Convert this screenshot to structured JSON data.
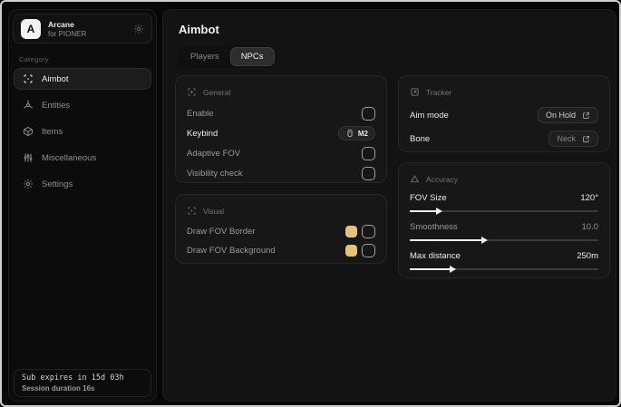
{
  "sidebar": {
    "brand": {
      "logo_letter": "A",
      "name": "Arcane",
      "subtitle": "for PIONER"
    },
    "category_label": "Category",
    "items": [
      {
        "label": "Aimbot"
      },
      {
        "label": "Entities"
      },
      {
        "label": "Items"
      },
      {
        "label": "Miscellaneous"
      },
      {
        "label": "Settings"
      }
    ],
    "footer": {
      "line1": "Sub expires in 15d 03h",
      "line2": "Session duration 16s"
    }
  },
  "main": {
    "title": "Aimbot",
    "tabs": [
      {
        "label": "Players"
      },
      {
        "label": "NPCs"
      }
    ],
    "general": {
      "title": "General",
      "rows": [
        {
          "label": "Enable"
        },
        {
          "label": "Keybind",
          "value": "M2"
        },
        {
          "label": "Adaptive FOV"
        },
        {
          "label": "Visibility check"
        }
      ]
    },
    "visual": {
      "title": "Visual",
      "rows": [
        {
          "label": "Draw FOV Border"
        },
        {
          "label": "Draw FOV Background"
        }
      ]
    },
    "tracker": {
      "title": "Tracker",
      "rows": [
        {
          "label": "Aim mode",
          "value": "On Hold"
        },
        {
          "label": "Bone",
          "value": "Neck"
        }
      ]
    },
    "accuracy": {
      "title": "Accuracy",
      "rows": [
        {
          "label": "FOV Size",
          "value": "120°",
          "fill_pct": 14
        },
        {
          "label": "Smoothness",
          "value": "10.0",
          "fill_pct": 38
        },
        {
          "label": "Max distance",
          "value": "250m",
          "fill_pct": 21
        }
      ]
    }
  },
  "colors": {
    "fov_swatch": "#e7c27d"
  }
}
